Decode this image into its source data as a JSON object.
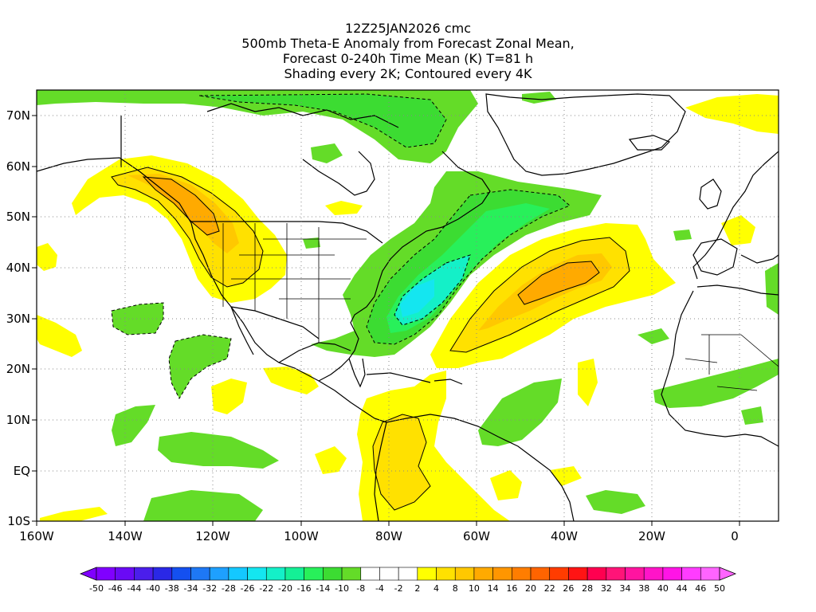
{
  "header": {
    "lines": [
      "12Z25JAN2026 cmc",
      "500mb Theta-E Anomaly from Forecast Zonal Mean,",
      "Forecast 0-240h Time Mean (K) T=81 h",
      "Shading every 2K; Contoured every 4K"
    ]
  },
  "axes": {
    "lat_labels": [
      "70N",
      "60N",
      "50N",
      "40N",
      "30N",
      "20N",
      "10N",
      "EQ",
      "10S"
    ],
    "lon_labels": [
      "160W",
      "140W",
      "120W",
      "100W",
      "80W",
      "60W",
      "40W",
      "20W",
      "0"
    ]
  },
  "colorbar": {
    "labels": [
      "-50",
      "-46",
      "-44",
      "-40",
      "-38",
      "-34",
      "-32",
      "-28",
      "-26",
      "-22",
      "-20",
      "-16",
      "-14",
      "-10",
      "-8",
      "-4",
      "-2",
      "2",
      "4",
      "8",
      "10",
      "14",
      "16",
      "20",
      "22",
      "26",
      "28",
      "32",
      "34",
      "38",
      "40",
      "44",
      "46",
      "50"
    ],
    "colors": [
      "#8000ff",
      "#6a0af5",
      "#4b1eeb",
      "#2a28e6",
      "#1450f0",
      "#1e78f5",
      "#1ea0ff",
      "#14c8ff",
      "#14e6f0",
      "#14f0c8",
      "#14f096",
      "#28f05a",
      "#3cdc32",
      "#64dc28",
      "#ffffff",
      "#ffffff",
      "#ffffff",
      "#ffff00",
      "#ffe100",
      "#ffc800",
      "#ffaa00",
      "#ff9600",
      "#ff7d00",
      "#ff6400",
      "#ff3c00",
      "#ff1414",
      "#ff0050",
      "#ff1478",
      "#ff14a0",
      "#ff14c8",
      "#ff14e6",
      "#ff3cff",
      "#ff64ff"
    ]
  },
  "colors": {
    "neg_light": "#64dc28",
    "neg_mid": "#3cdc32",
    "neg_deep": "#28f05a",
    "neg_cyan": "#14f0c8",
    "neg_aqua": "#14e6f0",
    "pos_yellow": "#ffff00",
    "pos_gold": "#ffe100",
    "pos_amber": "#ffc800",
    "pos_orange": "#ffaa00",
    "pos_deep": "#ff9600"
  }
}
